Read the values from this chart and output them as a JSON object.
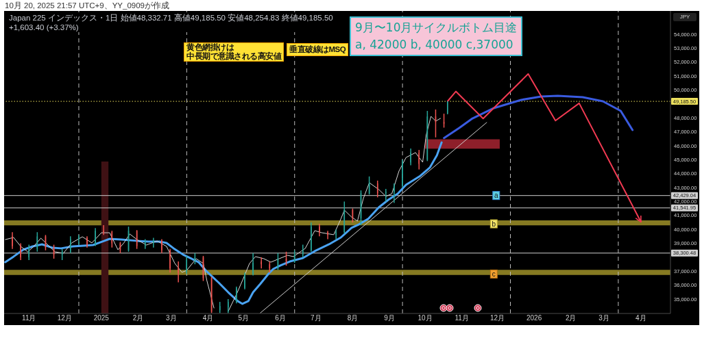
{
  "chart_data": {
    "type": "candlestick",
    "title": "Japan 225 インデックス・1日 始値48,332.71 高値49,185.50 安値48,254.83 終値49,185.50 +1,603.40 (+3.37%)",
    "subtitle": "10月 20, 2025 21:57 UTC+9、YY_0909が作成",
    "ylabel": "JPY",
    "annotations": [
      "黄色網掛けは",
      "中長期で意識される高安値",
      "垂直破線はMSQ",
      "9月〜10月サイクルボトム目途\na, 42000 b, 40000 c,37000",
      {
        "text": "a",
        "x": "2025-11-30",
        "y": 42430
      },
      {
        "text": "b",
        "x": "2025-11-28",
        "y": 40400
      },
      {
        "text": "c",
        "x": "2025-11-28",
        "y": 36800
      }
    ],
    "x": [
      "2024-10-18",
      "2024-10-25",
      "2024-11-01",
      "2024-11-08",
      "2024-11-15",
      "2024-11-22",
      "2024-11-29",
      "2024-12-06",
      "2024-12-13",
      "2024-12-20",
      "2024-12-27",
      "2025-01-03",
      "2025-01-10",
      "2025-01-17",
      "2025-01-24",
      "2025-01-31",
      "2025-02-07",
      "2025-02-14",
      "2025-02-21",
      "2025-02-28",
      "2025-03-07",
      "2025-03-14",
      "2025-03-21",
      "2025-03-28",
      "2025-04-04",
      "2025-04-11",
      "2025-04-18",
      "2025-04-25",
      "2025-05-02",
      "2025-05-09",
      "2025-05-16",
      "2025-05-23",
      "2025-05-30",
      "2025-06-06",
      "2025-06-13",
      "2025-06-20",
      "2025-06-27",
      "2025-07-04",
      "2025-07-11",
      "2025-07-18",
      "2025-07-25",
      "2025-08-01",
      "2025-08-08",
      "2025-08-15",
      "2025-08-22",
      "2025-08-29",
      "2025-09-05",
      "2025-09-12",
      "2025-09-19",
      "2025-09-26",
      "2025-10-03",
      "2025-10-10",
      "2025-10-17",
      "2025-10-20"
    ],
    "ohlc": [
      [
        39500,
        39800,
        38600,
        38800
      ],
      [
        38800,
        39000,
        37800,
        38000
      ],
      [
        38000,
        38900,
        37800,
        38600
      ],
      [
        38600,
        39800,
        38400,
        39500
      ],
      [
        39500,
        39600,
        38500,
        38700
      ],
      [
        38700,
        38900,
        37900,
        38200
      ],
      [
        38200,
        38600,
        37800,
        38400
      ],
      [
        38400,
        39500,
        38300,
        39300
      ],
      [
        39300,
        39600,
        38900,
        39400
      ],
      [
        39400,
        39500,
        38700,
        38900
      ],
      [
        38900,
        40100,
        38800,
        39900
      ],
      [
        39900,
        40300,
        39600,
        39800
      ],
      [
        39800,
        39900,
        38700,
        39000
      ],
      [
        39000,
        39100,
        38300,
        38500
      ],
      [
        38500,
        40200,
        38400,
        39900
      ],
      [
        39900,
        39950,
        38600,
        38800
      ],
      [
        38800,
        39300,
        38600,
        39100
      ],
      [
        39100,
        39400,
        38700,
        39200
      ],
      [
        39200,
        39300,
        38300,
        38500
      ],
      [
        38500,
        38600,
        36900,
        37200
      ],
      [
        37200,
        37700,
        36200,
        36900
      ],
      [
        36900,
        38100,
        36800,
        37800
      ],
      [
        37800,
        38300,
        37500,
        38000
      ],
      [
        38000,
        38100,
        36300,
        36500
      ],
      [
        36500,
        36600,
        34000,
        34100
      ],
      [
        34200,
        34800,
        34000,
        34500
      ],
      [
        34400,
        35000,
        34000,
        34800
      ],
      [
        34800,
        35900,
        34700,
        35800
      ],
      [
        35800,
        36900,
        35700,
        36800
      ],
      [
        36800,
        38300,
        36700,
        37600
      ],
      [
        37700,
        38000,
        37200,
        37500
      ],
      [
        37500,
        37700,
        36900,
        37200
      ],
      [
        37200,
        38300,
        37100,
        37900
      ],
      [
        37900,
        38400,
        37400,
        37700
      ],
      [
        37700,
        38500,
        37600,
        38200
      ],
      [
        38200,
        38900,
        38000,
        38500
      ],
      [
        38500,
        40500,
        38400,
        40200
      ],
      [
        40200,
        40400,
        39500,
        39800
      ],
      [
        39800,
        39900,
        39300,
        39600
      ],
      [
        39600,
        40000,
        39300,
        39800
      ],
      [
        39800,
        42000,
        39700,
        41400
      ],
      [
        41400,
        41500,
        40500,
        40800
      ],
      [
        40800,
        42800,
        40300,
        42600
      ],
      [
        42600,
        43800,
        42500,
        43300
      ],
      [
        43300,
        43500,
        42300,
        42600
      ],
      [
        42600,
        42900,
        42000,
        42700
      ],
      [
        42700,
        43300,
        41900,
        43100
      ],
      [
        43100,
        45000,
        43000,
        44800
      ],
      [
        44800,
        45800,
        44600,
        45500
      ],
      [
        45500,
        45700,
        44300,
        44700
      ],
      [
        45000,
        48500,
        44900,
        48100
      ],
      [
        48100,
        48600,
        46600,
        47700
      ],
      [
        47700,
        48300,
        47300,
        47580
      ],
      [
        48332.71,
        49185.5,
        48254.83,
        49185.5
      ]
    ],
    "series": [
      {
        "type": "line",
        "color": "#4aa3f2",
        "x": [
          "2024-10-12",
          "2024-10-19",
          "2024-10-27",
          "2024-11-04",
          "2024-11-12",
          "2024-11-21",
          "2024-11-28",
          "2024-12-08",
          "2024-12-17",
          "2024-12-25",
          "2025-01-02",
          "2025-01-08",
          "2025-01-18",
          "2025-01-31",
          "2025-02-10",
          "2025-02-19",
          "2025-02-25",
          "2025-03-03",
          "2025-03-11",
          "2025-03-18",
          "2025-03-24",
          "2025-03-31",
          "2025-04-10",
          "2025-04-18",
          "2025-04-26",
          "2025-04-30",
          "2025-05-05",
          "2025-05-09",
          "2025-05-15",
          "2025-05-22",
          "2025-05-26",
          "2025-06-01",
          "2025-06-09",
          "2025-06-20",
          "2025-06-30",
          "2025-07-12",
          "2025-07-22",
          "2025-07-31",
          "2025-08-06",
          "2025-08-14",
          "2025-08-23",
          "2025-08-31",
          "2025-09-08",
          "2025-09-15",
          "2025-09-27",
          "2025-10-05",
          "2025-10-11",
          "2025-10-15"
        ],
        "values": [
          37650,
          38050,
          38540,
          38780,
          38930,
          38680,
          38640,
          38780,
          38830,
          38880,
          39130,
          39320,
          39270,
          39180,
          39130,
          39130,
          39030,
          38640,
          38190,
          37900,
          37650,
          36970,
          36180,
          35490,
          34860,
          34660,
          34860,
          35490,
          36080,
          36820,
          37160,
          37410,
          37700,
          37950,
          38440,
          38930,
          39420,
          40110,
          40350,
          40750,
          41580,
          42120,
          42560,
          43200,
          43840,
          44430,
          45310,
          46240
        ]
      },
      {
        "type": "line",
        "color": "#d6d6d6",
        "x": [
          "2024-10-12",
          "2024-10-19",
          "2024-10-25",
          "2024-10-31",
          "2024-11-05",
          "2024-11-11",
          "2024-11-17",
          "2024-11-23",
          "2024-11-30",
          "2024-12-07",
          "2024-12-16",
          "2024-12-24",
          "2025-01-01",
          "2025-01-08",
          "2025-01-15",
          "2025-01-20",
          "2025-01-25",
          "2025-01-31",
          "2025-02-08",
          "2025-02-17",
          "2025-02-25",
          "2025-03-04",
          "2025-03-10",
          "2025-03-14",
          "2025-03-22",
          "2025-03-28",
          "2025-03-31",
          "2025-04-06",
          "2025-04-10",
          "2025-04-18",
          "2025-04-25",
          "2025-04-30",
          "2025-05-06",
          "2025-05-11",
          "2025-05-18",
          "2025-05-24",
          "2025-05-31",
          "2025-06-07",
          "2025-06-12",
          "2025-06-22",
          "2025-06-30",
          "2025-07-06",
          "2025-07-16",
          "2025-07-22",
          "2025-07-25",
          "2025-07-31",
          "2025-08-05",
          "2025-08-10",
          "2025-08-15",
          "2025-08-23",
          "2025-08-29",
          "2025-09-03",
          "2025-09-09",
          "2025-09-15",
          "2025-09-23",
          "2025-09-29",
          "2025-10-02",
          "2025-10-06",
          "2025-10-10",
          "2025-10-14"
        ],
        "values": [
          39270,
          39420,
          38780,
          38390,
          38780,
          39370,
          38880,
          38390,
          38290,
          39030,
          39470,
          39030,
          39760,
          39760,
          38540,
          39030,
          39670,
          39270,
          38880,
          39170,
          38780,
          37560,
          36920,
          37060,
          37900,
          37560,
          36330,
          34360,
          null,
          34120,
          35350,
          36330,
          37560,
          38050,
          37900,
          37650,
          37900,
          38140,
          38050,
          38640,
          39910,
          39760,
          39620,
          40750,
          41380,
          40890,
          40600,
          42220,
          43350,
          42860,
          42370,
          42560,
          44180,
          45160,
          45510,
          44820,
          46780,
          48110,
          47770,
          47960
        ]
      },
      {
        "type": "line",
        "color": "#cfcfcf",
        "x": [
          "2025-05-15",
          "2025-11-22"
        ],
        "values": [
          34000,
          47670
        ]
      },
      {
        "type": "line",
        "color": "#3a5be0",
        "x": [
          "2025-10-17",
          "2025-10-30",
          "2025-11-10",
          "2025-11-28",
          "2025-12-21",
          "2026-01-07",
          "2026-01-21",
          "2026-02-11",
          "2026-02-28",
          "2026-03-15",
          "2026-03-25"
        ],
        "values": [
          46550,
          47290,
          47960,
          48700,
          49290,
          49530,
          49580,
          49480,
          49190,
          48500,
          47130
        ]
      },
      {
        "type": "line",
        "color": "#f23a52",
        "x": [
          "2025-10-20",
          "2025-10-27",
          "2025-11-19",
          "2025-12-27",
          "2026-01-19",
          "2026-02-08",
          "2026-04-01"
        ],
        "values": [
          49190,
          49900,
          47950,
          51150,
          47800,
          49050,
          40550
        ]
      },
      {
        "type": "line",
        "color": "#8e1f2a",
        "x": [
          "2025-10-01",
          "2025-12-03"
        ],
        "values": [
          null,
          null
        ],
        "lower": [
          45790,
          45790
        ],
        "upper": [
          46470,
          46470
        ]
      },
      {
        "type": "area",
        "color": "#3f1114",
        "x": [
          "2025-01-01",
          "2025-01-07"
        ],
        "values": [
          44870,
          44870
        ]
      }
    ],
    "xlim": [
      "2024-10-11",
      "2026-04-26"
    ],
    "xticks": [
      {
        "value": "2024-11-01",
        "label": "11月"
      },
      {
        "value": "2024-12-01",
        "label": "12月"
      },
      {
        "value": "2025-01-01",
        "label": "2025"
      },
      {
        "value": "2025-02-01",
        "label": "2月"
      },
      {
        "value": "2025-03-01",
        "label": "3月"
      },
      {
        "value": "2025-04-01",
        "label": "4月"
      },
      {
        "value": "2025-05-01",
        "label": "5月"
      },
      {
        "value": "2025-06-01",
        "label": "6月"
      },
      {
        "value": "2025-07-01",
        "label": "7月"
      },
      {
        "value": "2025-08-01",
        "label": "8月"
      },
      {
        "value": "2025-09-01",
        "label": "9月"
      },
      {
        "value": "2025-10-01",
        "label": "10月"
      },
      {
        "value": "2025-11-01",
        "label": "11月"
      },
      {
        "value": "2025-12-01",
        "label": "12月"
      },
      {
        "value": "2026-01-01",
        "label": "2026"
      },
      {
        "value": "2026-02-01",
        "label": "2月"
      },
      {
        "value": "2026-03-01",
        "label": "3月"
      },
      {
        "value": "2026-04-01",
        "label": "4月"
      }
    ],
    "ylim": [
      33970,
      55670
    ],
    "yticks": [
      {
        "value": 35000,
        "label": "35,000.00"
      },
      {
        "value": 36000,
        "label": "36,000.00"
      },
      {
        "value": 37000,
        "label": "37,000.00"
      },
      {
        "value": 39000,
        "label": "39,000.00"
      },
      {
        "value": 40000,
        "label": "40,000.00"
      },
      {
        "value": 41000,
        "label": "41,000.00"
      },
      {
        "value": 42000,
        "label": "42,000.00"
      },
      {
        "value": 43000,
        "label": "43,000.00"
      },
      {
        "value": 44000,
        "label": "44,000.00"
      },
      {
        "value": 45000,
        "label": "45,000.00"
      },
      {
        "value": 46000,
        "label": "46,000.00"
      },
      {
        "value": 47000,
        "label": "47,000.00"
      },
      {
        "value": 48000,
        "label": "48,000.00"
      },
      {
        "value": 50000,
        "label": "50,000.00"
      },
      {
        "value": 51000,
        "label": "51,000.00"
      },
      {
        "value": 52000,
        "label": "52,000.00"
      },
      {
        "value": 53000,
        "label": "53,000.00"
      },
      {
        "value": 54000,
        "label": "54,000.00"
      }
    ],
    "ref_lines": [
      {
        "axis": "y",
        "value": 49185.5,
        "label": "49,185.50",
        "color": "#ece05e",
        "line_style": "dotted"
      },
      {
        "axis": "y",
        "value": 42429.04,
        "label": "42,429.04",
        "color": "#d0d0d0"
      },
      {
        "axis": "y",
        "value": 41541.95,
        "label": "41,541.95",
        "color": "#d0d0d0"
      },
      {
        "axis": "y",
        "value": 38300.48,
        "label": "38,300.48",
        "color": "#d0d0d0"
      },
      {
        "axis": "x",
        "value": "2024-12-13",
        "color": "#bdbdbd",
        "line_style": "dashed"
      },
      {
        "axis": "x",
        "value": "2025-03-14",
        "color": "#bdbdbd",
        "line_style": "dashed"
      },
      {
        "axis": "x",
        "value": "2025-06-13",
        "color": "#bdbdbd",
        "line_style": "dashed"
      },
      {
        "axis": "x",
        "value": "2025-09-12",
        "color": "#bdbdbd",
        "line_style": "dashed"
      },
      {
        "axis": "x",
        "value": "2025-12-12",
        "color": "#bdbdbd",
        "line_style": "dashed"
      },
      {
        "axis": "x",
        "value": "2026-03-13",
        "color": "#bdbdbd",
        "line_style": "dashed"
      }
    ],
    "bands": [
      {
        "axis": "y",
        "from": 40290,
        "to": 40650,
        "color": "#867a22"
      },
      {
        "axis": "y",
        "from": 36730,
        "to": 37100,
        "color": "#867a22"
      }
    ]
  }
}
